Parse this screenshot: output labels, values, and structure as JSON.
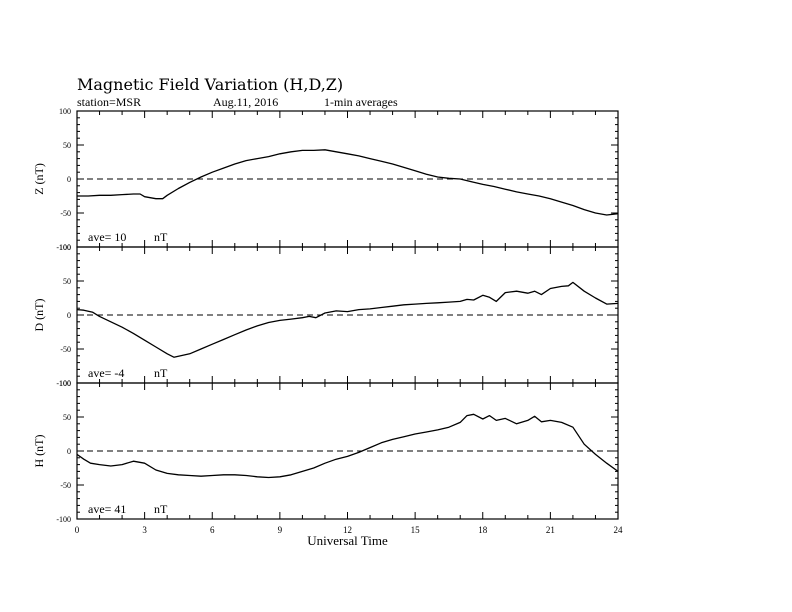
{
  "chart_data": [
    {
      "type": "line",
      "title": "Magnetic Field Variation (H,D,Z)",
      "station": "station=MSR",
      "date": "Aug.11, 2016",
      "averaging": "1-min averages",
      "xlabel": "Universal Time",
      "xlim": [
        0,
        24
      ],
      "xticks": [
        "0",
        "3",
        "6",
        "9",
        "12",
        "15",
        "18",
        "21",
        "24"
      ],
      "panels": [
        {
          "ylabel": "Z (nT)",
          "ylim": [
            -100,
            100
          ],
          "yticks": [
            "100",
            "50",
            "0",
            "-50",
            "-100"
          ],
          "ave_label": "ave= 10",
          "unit": "nT",
          "series": {
            "x": [
              0,
              0.5,
              1,
              1.5,
              2,
              2.5,
              2.8,
              3,
              3.5,
              3.8,
              4,
              4.5,
              5,
              5.5,
              6,
              6.5,
              7,
              7.5,
              8,
              8.5,
              9,
              9.5,
              10,
              10.5,
              11,
              11.5,
              12,
              12.5,
              13,
              13.5,
              14,
              14.5,
              15,
              15.5,
              16,
              16.5,
              17,
              17.5,
              18,
              18.5,
              19,
              19.5,
              20,
              20.5,
              21,
              21.5,
              22,
              22.5,
              23,
              23.5,
              24
            ],
            "y": [
              -25,
              -25,
              -24,
              -24,
              -23,
              -22,
              -22,
              -26,
              -29,
              -29,
              -24,
              -14,
              -5,
              3,
              10,
              16,
              22,
              27,
              30,
              33,
              37,
              40,
              42,
              42,
              43,
              40,
              37,
              34,
              30,
              26,
              22,
              17,
              12,
              7,
              3,
              1,
              0,
              -4,
              -8,
              -11,
              -15,
              -19,
              -22,
              -25,
              -29,
              -34,
              -39,
              -45,
              -50,
              -53,
              -51
            ]
          }
        },
        {
          "ylabel": "D (nT)",
          "ylim": [
            -100,
            100
          ],
          "yticks": [
            "100",
            "50",
            "0",
            "-50",
            "-100"
          ],
          "ave_label": "ave= -4",
          "unit": "nT",
          "series": {
            "x": [
              0,
              0.3,
              0.7,
              1,
              1.5,
              2,
              2.5,
              3,
              3.5,
              4,
              4.3,
              4.6,
              5,
              5.5,
              6,
              6.5,
              7,
              7.5,
              8,
              8.5,
              9,
              9.5,
              10,
              10.3,
              10.6,
              11,
              11.5,
              12,
              12.5,
              13,
              13.5,
              14,
              14.5,
              15,
              15.5,
              16,
              16.5,
              17,
              17.3,
              17.6,
              18,
              18.3,
              18.6,
              19,
              19.5,
              20,
              20.3,
              20.6,
              21,
              21.5,
              21.8,
              22,
              22.5,
              23,
              23.5,
              24
            ],
            "y": [
              8,
              7,
              4,
              -2,
              -10,
              -18,
              -27,
              -37,
              -47,
              -57,
              -62,
              -60,
              -57,
              -50,
              -43,
              -36,
              -29,
              -22,
              -16,
              -11,
              -8,
              -6,
              -4,
              -2,
              -4,
              3,
              6,
              5,
              8,
              9,
              11,
              13,
              15,
              16,
              17,
              18,
              19,
              20,
              23,
              22,
              29,
              26,
              20,
              33,
              35,
              32,
              35,
              30,
              39,
              42,
              43,
              48,
              35,
              25,
              16,
              17
            ]
          }
        },
        {
          "ylabel": "H (nT)",
          "ylim": [
            -100,
            100
          ],
          "yticks": [
            "100",
            "50",
            "0",
            "-50",
            "-100"
          ],
          "ave_label": "ave= 41",
          "unit": "nT",
          "series": {
            "x": [
              0,
              0.3,
              0.6,
              1,
              1.5,
              2,
              2.5,
              3,
              3.5,
              4,
              4.5,
              5,
              5.5,
              6,
              6.5,
              7,
              7.5,
              8,
              8.5,
              9,
              9.5,
              10,
              10.5,
              11,
              11.5,
              12,
              12.5,
              13,
              13.5,
              14,
              14.5,
              15,
              15.5,
              16,
              16.5,
              17,
              17.3,
              17.6,
              18,
              18.3,
              18.6,
              19,
              19.5,
              20,
              20.3,
              20.6,
              21,
              21.5,
              22,
              22.5,
              23,
              23.5,
              24
            ],
            "y": [
              -5,
              -12,
              -18,
              -20,
              -22,
              -20,
              -15,
              -18,
              -28,
              -33,
              -35,
              -36,
              -37,
              -36,
              -35,
              -35,
              -36,
              -38,
              -39,
              -38,
              -35,
              -30,
              -25,
              -18,
              -12,
              -8,
              -2,
              5,
              12,
              17,
              21,
              25,
              28,
              31,
              35,
              42,
              52,
              54,
              47,
              52,
              45,
              48,
              40,
              45,
              51,
              43,
              45,
              42,
              35,
              10,
              -5,
              -18,
              -30
            ]
          }
        }
      ]
    }
  ]
}
